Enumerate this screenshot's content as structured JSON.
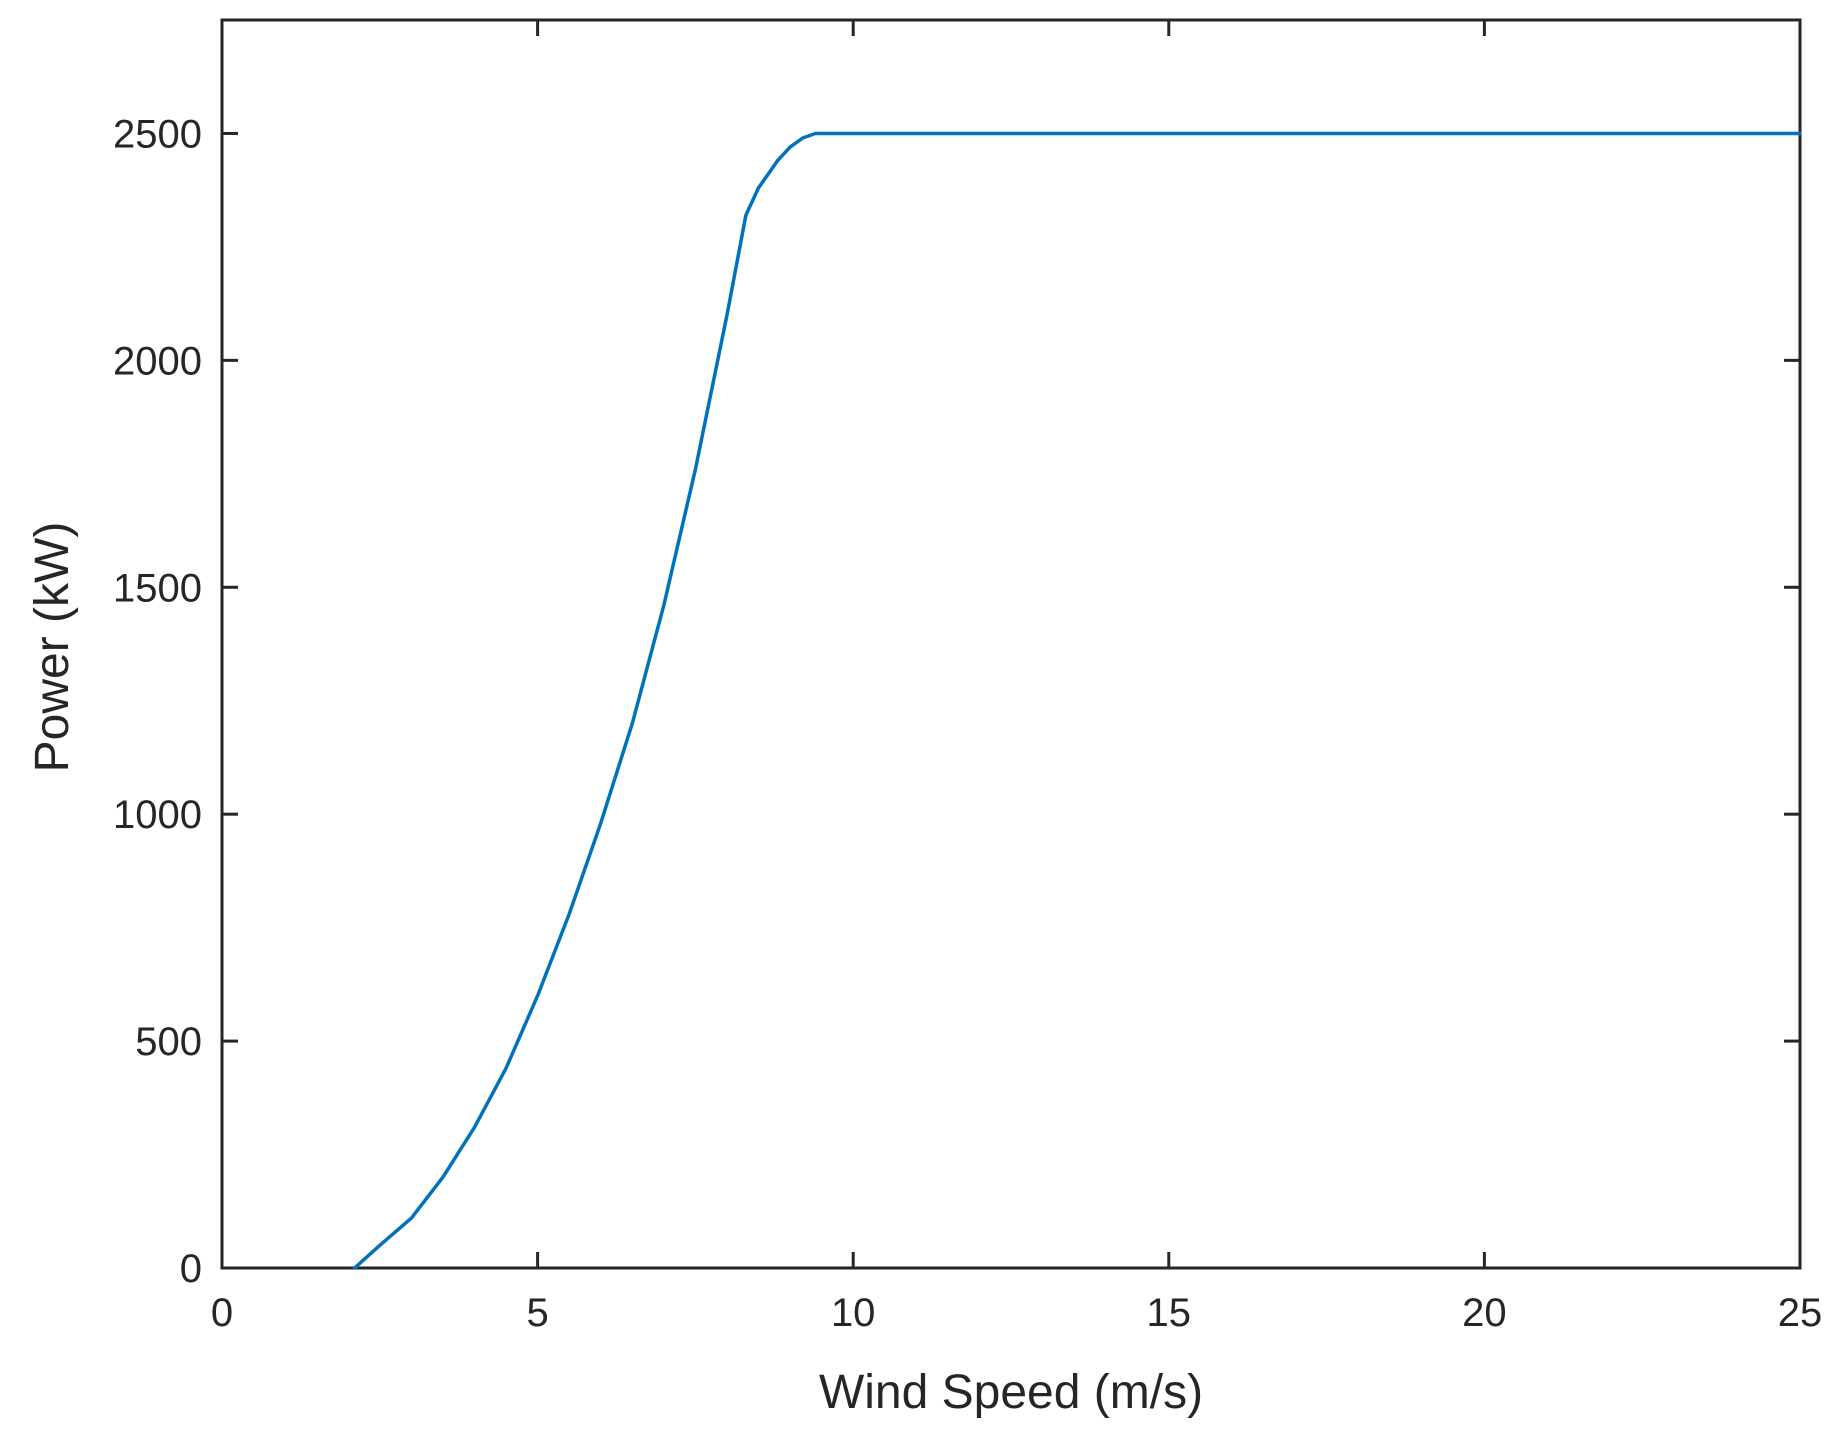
{
  "chart_data": {
    "type": "line",
    "title": "",
    "xlabel": "Wind Speed (m/s)",
    "ylabel": "Power (kW)",
    "xlim": [
      0,
      25
    ],
    "ylim": [
      0,
      2750
    ],
    "xticks": [
      0,
      5,
      10,
      15,
      20,
      25
    ],
    "yticks": [
      0,
      500,
      1000,
      1500,
      2000,
      2500
    ],
    "xtick_labels": [
      "0",
      "5",
      "10",
      "15",
      "20",
      "25"
    ],
    "ytick_labels": [
      "0",
      "500",
      "1000",
      "1500",
      "2000",
      "2500"
    ],
    "grid": false,
    "legend": "none",
    "line_color": "#0072BD",
    "axis_color": "#262626",
    "series": [
      {
        "x": [
          2.1,
          2.5,
          3.0,
          3.5,
          4.0,
          4.5,
          5.0,
          5.5,
          6.0,
          6.5,
          7.0,
          7.5,
          8.0,
          8.3,
          8.5,
          8.8,
          9.0,
          9.2,
          9.4,
          9.6,
          10.0,
          15.0,
          20.0,
          25.0
        ],
        "values": [
          0,
          50,
          110,
          200,
          310,
          440,
          600,
          780,
          980,
          1200,
          1460,
          1760,
          2100,
          2320,
          2380,
          2440,
          2470,
          2490,
          2500,
          2500,
          2500,
          2500,
          2500,
          2500
        ]
      }
    ]
  }
}
